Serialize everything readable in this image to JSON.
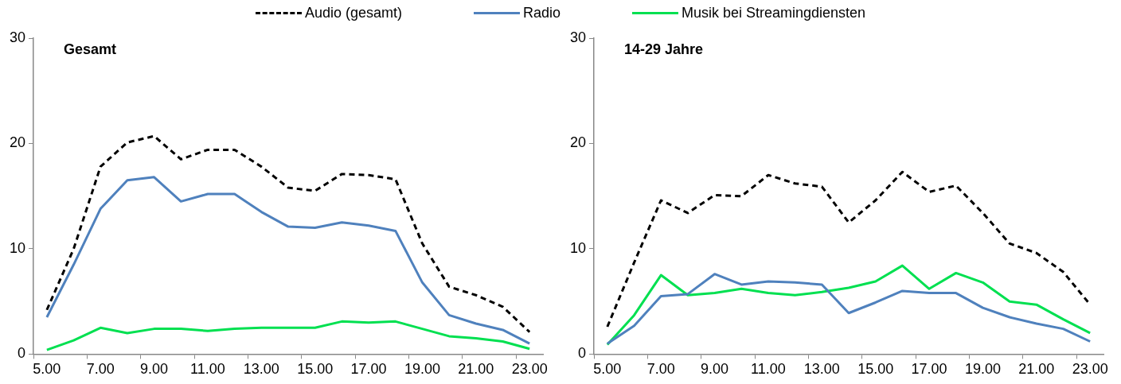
{
  "chart_data": [
    {
      "type": "line",
      "title": "Gesamt",
      "categories": [
        "5.00",
        null,
        "7.00",
        null,
        "9.00",
        null,
        "11.00",
        null,
        "13.00",
        null,
        "15.00",
        null,
        "17.00",
        null,
        "19.00",
        null,
        "21.00",
        null,
        "23.00"
      ],
      "ylim": [
        0,
        30
      ],
      "yticks": [
        0,
        10,
        20,
        30
      ],
      "grid": false,
      "legend": "top",
      "marker": "none",
      "series": [
        {
          "name": "Audio (gesamt)",
          "color": "#000000",
          "line_style": "dashed",
          "values": [
            4.2,
            10.0,
            17.8,
            20.1,
            20.7,
            18.5,
            19.4,
            19.4,
            17.8,
            15.8,
            15.5,
            17.1,
            17.0,
            16.6,
            10.5,
            6.4,
            5.6,
            4.5,
            2.1
          ]
        },
        {
          "name": "Radio",
          "color": "#4f81bd",
          "line_style": "solid",
          "values": [
            3.5,
            8.5,
            13.8,
            16.5,
            16.8,
            14.5,
            15.2,
            15.2,
            13.5,
            12.1,
            12.0,
            12.5,
            12.2,
            11.7,
            6.8,
            3.7,
            2.9,
            2.3,
            1.0
          ]
        },
        {
          "name": "Musik bei Streamingdiensten",
          "color": "#00e050",
          "line_style": "solid",
          "values": [
            0.4,
            1.3,
            2.5,
            2.0,
            2.4,
            2.4,
            2.2,
            2.4,
            2.5,
            2.5,
            2.5,
            3.1,
            3.0,
            3.1,
            2.4,
            1.7,
            1.5,
            1.2,
            0.5
          ]
        }
      ]
    },
    {
      "type": "line",
      "title": "14-29 Jahre",
      "categories": [
        "5.00",
        null,
        "7.00",
        null,
        "9.00",
        null,
        "11.00",
        null,
        "13.00",
        null,
        "15.00",
        null,
        "17.00",
        null,
        "19.00",
        null,
        "21.00",
        null,
        "23.00"
      ],
      "ylim": [
        0,
        30
      ],
      "yticks": [
        0,
        10,
        20,
        30
      ],
      "grid": false,
      "marker": "none",
      "series": [
        {
          "color": "#000000",
          "line_style": "dashed",
          "values": [
            2.6,
            8.7,
            14.6,
            13.4,
            15.1,
            15.0,
            17.0,
            16.2,
            15.9,
            12.5,
            14.6,
            17.3,
            15.4,
            16.0,
            13.4,
            10.5,
            9.6,
            7.8,
            4.7
          ]
        },
        {
          "color": "#4f81bd",
          "line_style": "solid",
          "values": [
            1.0,
            2.7,
            5.5,
            5.7,
            7.6,
            6.6,
            6.9,
            6.8,
            6.6,
            3.9,
            4.9,
            6.0,
            5.8,
            5.8,
            4.4,
            3.5,
            2.9,
            2.4,
            1.2
          ]
        },
        {
          "color": "#00e050",
          "line_style": "solid",
          "values": [
            0.9,
            3.7,
            7.5,
            5.6,
            5.8,
            6.2,
            5.8,
            5.6,
            5.9,
            6.3,
            6.9,
            8.4,
            6.2,
            7.7,
            6.8,
            5.0,
            4.7,
            3.3,
            2.0
          ]
        }
      ]
    }
  ]
}
